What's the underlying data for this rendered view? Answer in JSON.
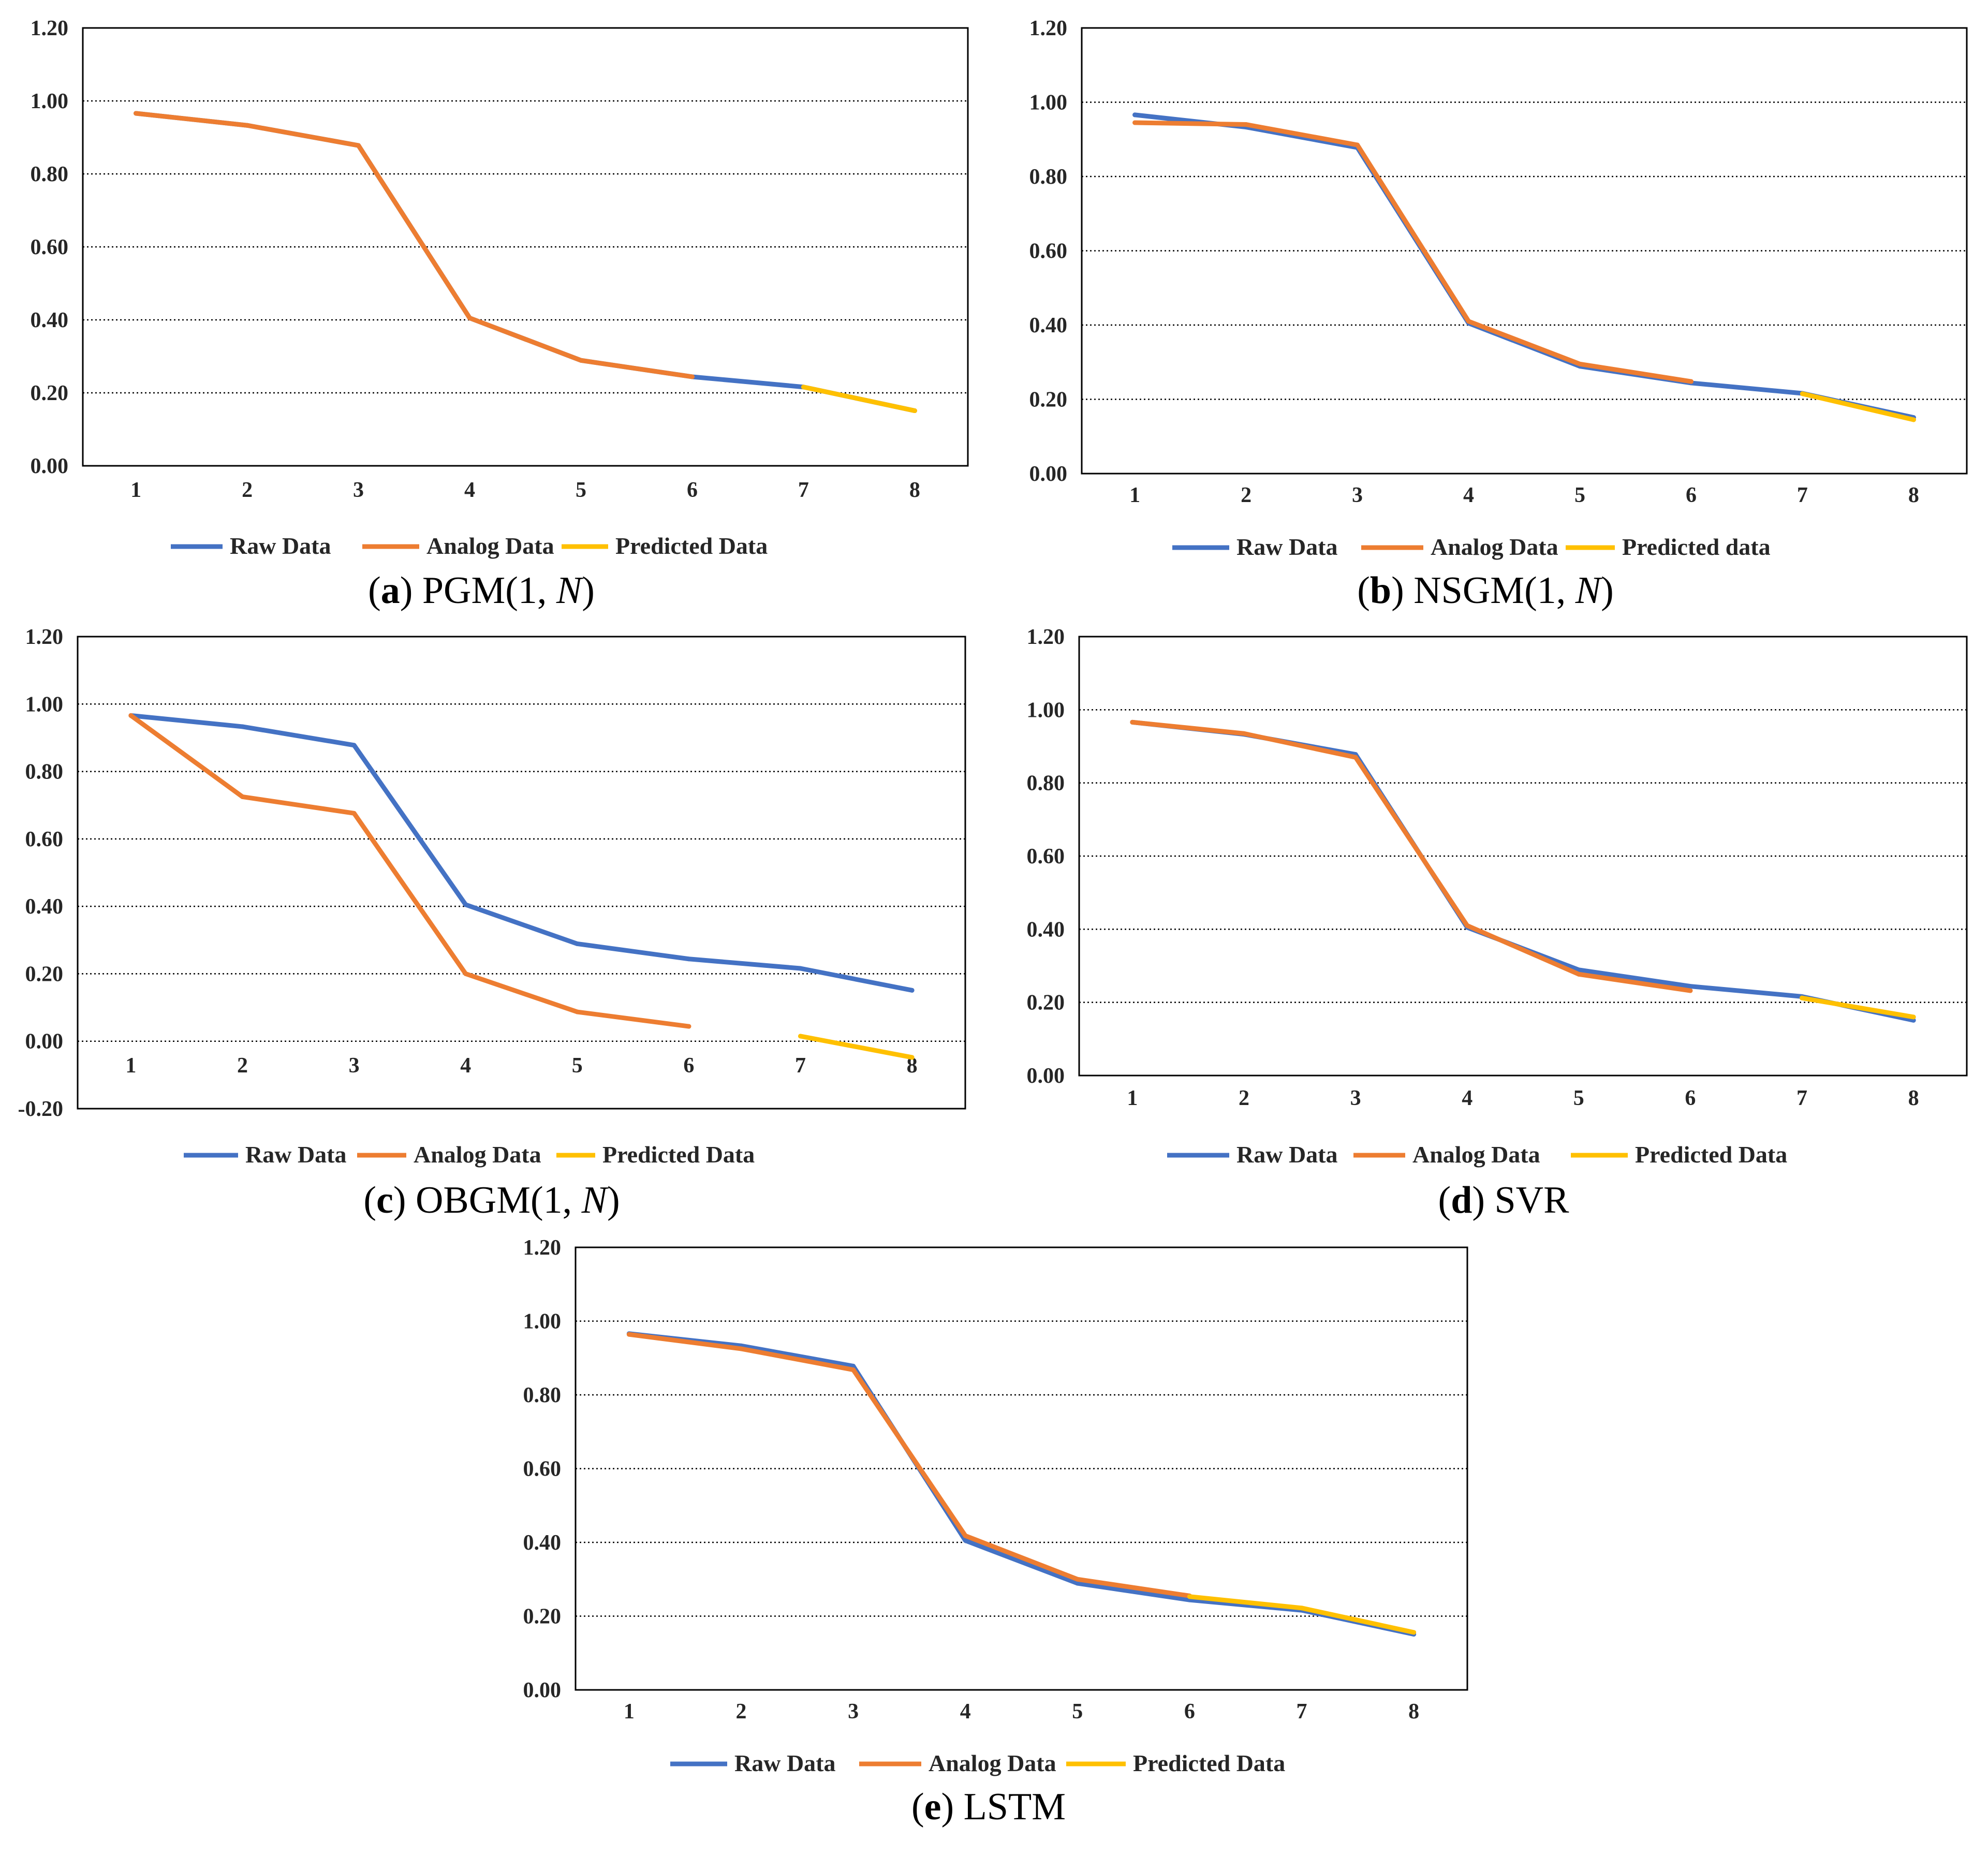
{
  "colors": {
    "raw": "#4472C4",
    "analog": "#ED7D31",
    "predicted": "#FFC000",
    "grid": "#000000",
    "axis": "#000000",
    "frame": "#000000"
  },
  "chart_data": [
    {
      "id": "a",
      "type": "line",
      "caption": {
        "letter": "a",
        "model": "PGM(1, ",
        "model_italic": "N",
        "model_tail": ")"
      },
      "categories": [
        "1",
        "2",
        "3",
        "4",
        "5",
        "6",
        "7",
        "8"
      ],
      "ylim": [
        0,
        1.2
      ],
      "yticks": [
        "0.00",
        "0.20",
        "0.40",
        "0.60",
        "0.80",
        "1.00",
        "1.20"
      ],
      "grid": true,
      "legend": [
        "Raw Data",
        "Analog Data",
        "Predicted Data"
      ],
      "series": [
        {
          "name": "Raw Data",
          "x": [
            1,
            2,
            3,
            4,
            5,
            6,
            7,
            8
          ],
          "values": [
            0.966,
            0.933,
            0.878,
            0.405,
            0.289,
            0.244,
            0.216,
            0.151
          ]
        },
        {
          "name": "Analog Data",
          "x": [
            1,
            2,
            3,
            4,
            5,
            6
          ],
          "values": [
            0.966,
            0.933,
            0.878,
            0.405,
            0.289,
            0.244
          ]
        },
        {
          "name": "Predicted Data",
          "x": [
            7,
            8
          ],
          "values": [
            0.216,
            0.151
          ]
        }
      ]
    },
    {
      "id": "b",
      "type": "line",
      "caption": {
        "letter": "b",
        "model": "NSGM(1, ",
        "model_italic": "N",
        "model_tail": ")"
      },
      "categories": [
        "1",
        "2",
        "3",
        "4",
        "5",
        "6",
        "7",
        "8"
      ],
      "ylim": [
        0,
        1.2
      ],
      "yticks": [
        "0.00",
        "0.20",
        "0.40",
        "0.60",
        "0.80",
        "1.00",
        "1.20"
      ],
      "grid": true,
      "legend": [
        "Raw Data",
        "Analog Data",
        "Predicted data"
      ],
      "series": [
        {
          "name": "Raw Data",
          "x": [
            1,
            2,
            3,
            4,
            5,
            6,
            7,
            8
          ],
          "values": [
            0.966,
            0.933,
            0.878,
            0.405,
            0.289,
            0.244,
            0.216,
            0.151
          ]
        },
        {
          "name": "Analog Data",
          "x": [
            1,
            2,
            3,
            4,
            5,
            6
          ],
          "values": [
            0.945,
            0.94,
            0.885,
            0.41,
            0.295,
            0.248
          ]
        },
        {
          "name": "Predicted data",
          "x": [
            7,
            8
          ],
          "values": [
            0.215,
            0.145
          ]
        }
      ]
    },
    {
      "id": "c",
      "type": "line",
      "caption": {
        "letter": "c",
        "model": "OBGM(1, ",
        "model_italic": "N",
        "model_tail": ")"
      },
      "categories": [
        "1",
        "2",
        "3",
        "4",
        "5",
        "6",
        "7",
        "8"
      ],
      "ylim": [
        -0.2,
        1.2
      ],
      "yticks": [
        "-0.20",
        "0.00",
        "0.20",
        "0.40",
        "0.60",
        "0.80",
        "1.00",
        "1.20"
      ],
      "grid": true,
      "legend": [
        "Raw Data",
        "Analog Data",
        "Predicted Data"
      ],
      "series": [
        {
          "name": "Raw Data",
          "x": [
            1,
            2,
            3,
            4,
            5,
            6,
            7,
            8
          ],
          "values": [
            0.966,
            0.933,
            0.878,
            0.405,
            0.289,
            0.244,
            0.216,
            0.151
          ]
        },
        {
          "name": "Analog Data",
          "x": [
            1,
            2,
            3,
            4,
            5,
            6
          ],
          "values": [
            0.966,
            0.725,
            0.676,
            0.2,
            0.087,
            0.044
          ]
        },
        {
          "name": "Predicted Data",
          "x": [
            7,
            8
          ],
          "values": [
            0.015,
            -0.048
          ]
        }
      ]
    },
    {
      "id": "d",
      "type": "line",
      "caption": {
        "letter": "d",
        "model": "SVR",
        "model_italic": "",
        "model_tail": ""
      },
      "categories": [
        "1",
        "2",
        "3",
        "4",
        "5",
        "6",
        "7",
        "8"
      ],
      "ylim": [
        0,
        1.2
      ],
      "yticks": [
        "0.00",
        "0.20",
        "0.40",
        "0.60",
        "0.80",
        "1.00",
        "1.20"
      ],
      "grid": true,
      "legend": [
        "Raw Data",
        "Analog Data",
        "Predicted Data"
      ],
      "series": [
        {
          "name": "Raw Data",
          "x": [
            1,
            2,
            3,
            4,
            5,
            6,
            7,
            8
          ],
          "values": [
            0.966,
            0.933,
            0.878,
            0.405,
            0.289,
            0.244,
            0.216,
            0.151
          ]
        },
        {
          "name": "Analog Data",
          "x": [
            1,
            2,
            3,
            4,
            5,
            6
          ],
          "values": [
            0.966,
            0.935,
            0.87,
            0.41,
            0.277,
            0.232
          ]
        },
        {
          "name": "Predicted Data",
          "x": [
            7,
            8
          ],
          "values": [
            0.212,
            0.16
          ]
        }
      ]
    },
    {
      "id": "e",
      "type": "line",
      "caption": {
        "letter": "e",
        "model": "LSTM",
        "model_italic": "",
        "model_tail": ""
      },
      "categories": [
        "1",
        "2",
        "3",
        "4",
        "5",
        "6",
        "7",
        "8"
      ],
      "ylim": [
        0,
        1.2
      ],
      "yticks": [
        "0.00",
        "0.20",
        "0.40",
        "0.60",
        "0.80",
        "1.00",
        "1.20"
      ],
      "grid": true,
      "legend": [
        "Raw Data",
        "Analog Data",
        "Predicted Data"
      ],
      "series": [
        {
          "name": "Raw Data",
          "x": [
            1,
            2,
            3,
            4,
            5,
            6,
            7,
            8
          ],
          "values": [
            0.966,
            0.933,
            0.878,
            0.405,
            0.289,
            0.244,
            0.216,
            0.151
          ]
        },
        {
          "name": "Analog Data",
          "x": [
            1,
            2,
            3,
            4,
            5,
            6
          ],
          "values": [
            0.964,
            0.925,
            0.868,
            0.418,
            0.3,
            0.255
          ]
        },
        {
          "name": "Predicted Data",
          "x": [
            6,
            7,
            8
          ],
          "values": [
            0.253,
            0.222,
            0.156
          ]
        }
      ]
    }
  ]
}
